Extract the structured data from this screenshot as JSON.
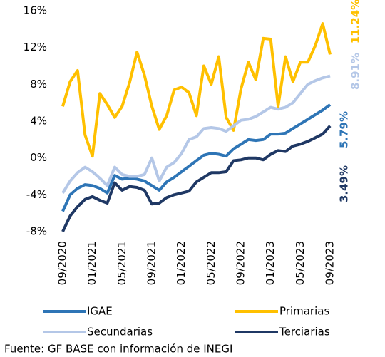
{
  "chart_data": {
    "type": "line",
    "categories": [
      "09/2020",
      null,
      null,
      null,
      "01/2021",
      null,
      null,
      null,
      "05/2021",
      null,
      null,
      null,
      "09/2021",
      null,
      null,
      null,
      "01/2022",
      null,
      null,
      null,
      "05/2022",
      null,
      null,
      null,
      "09/2022",
      null,
      null,
      null,
      "01/2023",
      null,
      null,
      null,
      "05/2023",
      null,
      null,
      null,
      "09/2023"
    ],
    "series": [
      {
        "name": "IGAE",
        "color": "#2e75b6",
        "end_label": "5.79%",
        "values": [
          -5.8,
          -4.0,
          -3.3,
          -2.9,
          -3.0,
          -3.3,
          -3.8,
          -1.9,
          -2.3,
          -2.2,
          -2.3,
          -2.5,
          -3.0,
          -3.5,
          -2.6,
          -2.1,
          -1.5,
          -0.9,
          -0.3,
          0.3,
          0.5,
          0.4,
          0.2,
          1.0,
          1.5,
          2.0,
          1.9,
          2.0,
          2.6,
          2.6,
          2.7,
          3.2,
          3.7,
          4.2,
          4.7,
          5.2,
          5.79
        ]
      },
      {
        "name": "Primarias",
        "color": "#ffc000",
        "end_label": "11.24%",
        "values": [
          5.6,
          8.3,
          9.5,
          2.5,
          0.2,
          7.0,
          5.8,
          4.4,
          5.6,
          8.2,
          11.5,
          9.0,
          5.6,
          3.1,
          4.6,
          7.4,
          7.7,
          7.1,
          4.6,
          10.0,
          8.0,
          11.0,
          4.4,
          3.0,
          7.5,
          10.4,
          8.5,
          13.0,
          12.9,
          5.6,
          11.0,
          8.3,
          10.4,
          10.4,
          12.2,
          14.6,
          11.24
        ]
      },
      {
        "name": "Secundarias",
        "color": "#b4c7e7",
        "end_label": "8.91%",
        "values": [
          -3.8,
          -2.5,
          -1.6,
          -1.0,
          -1.5,
          -2.2,
          -3.0,
          -1.0,
          -1.8,
          -2.0,
          -2.0,
          -1.8,
          0.0,
          -2.5,
          -1.0,
          -0.5,
          0.5,
          2.0,
          2.3,
          3.2,
          3.3,
          3.2,
          2.9,
          3.5,
          4.1,
          4.2,
          4.5,
          5.0,
          5.5,
          5.3,
          5.5,
          6.0,
          7.0,
          8.0,
          8.4,
          8.7,
          8.91
        ]
      },
      {
        "name": "Terciarias",
        "color": "#1f3864",
        "end_label": "3.49%",
        "values": [
          -8.0,
          -6.3,
          -5.3,
          -4.5,
          -4.2,
          -4.6,
          -4.9,
          -2.7,
          -3.5,
          -3.1,
          -3.2,
          -3.5,
          -5.0,
          -4.9,
          -4.3,
          -4.0,
          -3.8,
          -3.6,
          -2.6,
          -2.1,
          -1.6,
          -1.6,
          -1.5,
          -0.3,
          -0.2,
          0.0,
          0.0,
          -0.2,
          0.4,
          0.8,
          0.7,
          1.3,
          1.5,
          1.8,
          2.2,
          2.6,
          3.49
        ]
      }
    ],
    "ylim": [
      -8,
      16
    ],
    "yticks": [
      {
        "value": -8,
        "label": "-8%"
      },
      {
        "value": -4,
        "label": "-4%"
      },
      {
        "value": 0,
        "label": "0%"
      },
      {
        "value": 4,
        "label": "4%"
      },
      {
        "value": 8,
        "label": "8%"
      },
      {
        "value": 12,
        "label": "12%"
      },
      {
        "value": 16,
        "label": "16%"
      }
    ],
    "source": "Fuente: GF BASE con información de INEGI"
  }
}
